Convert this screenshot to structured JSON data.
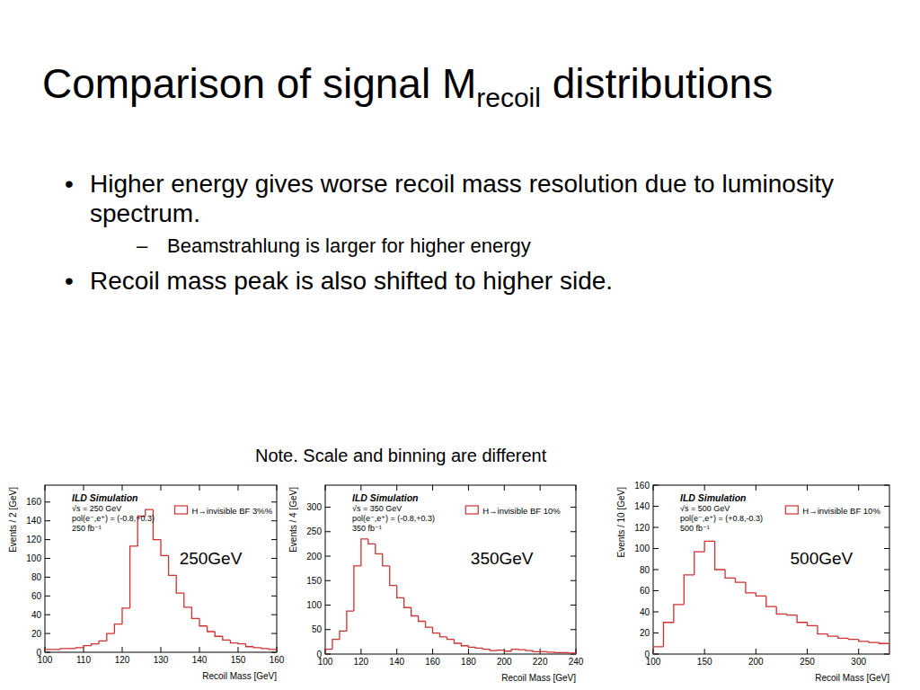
{
  "slide": {
    "title": {
      "text": "Comparison of signal M",
      "subscript": "recoil",
      "after": " distributions"
    },
    "bullets": [
      {
        "text": "Higher energy gives worse recoil mass resolution due to luminosity spectrum.",
        "sub": [
          "Beamstrahlung is larger for higher energy"
        ]
      },
      {
        "text": "Recoil mass peak is also shifted to higher side."
      }
    ],
    "note": "Note. Scale and binning are different"
  },
  "chart_data": [
    {
      "type": "histogram",
      "subtitle": "250GeV",
      "annotations": [
        "ILD Simulation",
        "√s = 250 GeV",
        "pol(e⁻,e⁺) = (-0.8,+0.3)",
        "250 fb⁻¹"
      ],
      "x_label": "Recoil Mass [GeV]",
      "y_label": "Events / 2 [GeV]",
      "legend": "top-right",
      "bins": [
        100,
        102,
        104,
        106,
        108,
        110,
        112,
        114,
        116,
        118,
        120,
        122,
        124,
        126,
        128,
        130,
        132,
        134,
        136,
        138,
        140,
        142,
        144,
        146,
        148,
        150,
        152,
        154,
        156,
        158,
        160
      ],
      "series": [
        {
          "name": "H→invisible BF 3%%",
          "color": "#d03030",
          "values": [
            3,
            3,
            4,
            4,
            5,
            7,
            9,
            12,
            20,
            30,
            47,
            113,
            145,
            152,
            120,
            103,
            82,
            63,
            48,
            36,
            28,
            22,
            17,
            13,
            10,
            9,
            6,
            5,
            4,
            3
          ]
        }
      ],
      "xlim": [
        100,
        160
      ],
      "xticks": [
        100,
        110,
        120,
        130,
        140,
        150,
        160
      ],
      "ylim": [
        0,
        178
      ],
      "yticks": [
        0,
        20,
        40,
        60,
        80,
        100,
        120,
        140,
        160
      ]
    },
    {
      "type": "histogram",
      "subtitle": "350GeV",
      "annotations": [
        "ILD Simulation",
        "√s = 350 GeV",
        "pol(e⁻,e⁺) = (-0.8,+0.3)",
        "350 fb⁻¹"
      ],
      "x_label": "Recoil Mass [GeV]",
      "y_label": "Events / 4 [GeV]",
      "legend": "top-right",
      "bins": [
        100,
        104,
        108,
        112,
        116,
        120,
        124,
        128,
        132,
        136,
        140,
        144,
        148,
        152,
        156,
        160,
        164,
        168,
        172,
        176,
        180,
        184,
        188,
        192,
        196,
        200,
        204,
        208,
        212,
        216,
        220,
        224,
        228,
        232,
        236,
        240
      ],
      "series": [
        {
          "name": "H→invisible BF 10%",
          "color": "#d03030",
          "values": [
            10,
            30,
            47,
            88,
            180,
            235,
            225,
            205,
            180,
            140,
            115,
            95,
            78,
            67,
            55,
            43,
            35,
            30,
            22,
            17,
            14,
            12,
            10,
            7,
            8,
            6,
            10,
            9,
            7,
            5,
            5,
            4,
            3,
            3,
            2
          ]
        }
      ],
      "xlim": [
        100,
        240
      ],
      "xticks": [
        100,
        120,
        140,
        160,
        180,
        200,
        220,
        240
      ],
      "ylim": [
        0,
        345
      ],
      "yticks": [
        0,
        50,
        100,
        150,
        200,
        250,
        300
      ]
    },
    {
      "type": "histogram",
      "subtitle": "500GeV",
      "annotations": [
        "ILD Simulation",
        "√s = 500 GeV",
        "pol(e⁻,e⁺) = (+0.8,-0.3)",
        "500 fb⁻¹"
      ],
      "x_label": "Recoil Mass [GeV]",
      "y_label": "Events / 10 [GeV]",
      "legend": "top-right",
      "bins": [
        100,
        110,
        120,
        130,
        140,
        150,
        160,
        170,
        180,
        190,
        200,
        210,
        220,
        230,
        240,
        250,
        260,
        270,
        280,
        290,
        300,
        310,
        320,
        330
      ],
      "series": [
        {
          "name": "H→invisible BF 10%",
          "color": "#d03030",
          "values": [
            7,
            30,
            47,
            75,
            97,
            107,
            80,
            72,
            68,
            58,
            55,
            45,
            38,
            37,
            30,
            27,
            19,
            17,
            15,
            14,
            12,
            11,
            10
          ]
        }
      ],
      "xlim": [
        100,
        330
      ],
      "xticks": [
        100,
        150,
        200,
        250,
        300
      ],
      "ylim": [
        0,
        160
      ],
      "yticks": [
        0,
        20,
        40,
        60,
        80,
        100,
        120,
        140,
        160
      ]
    }
  ]
}
